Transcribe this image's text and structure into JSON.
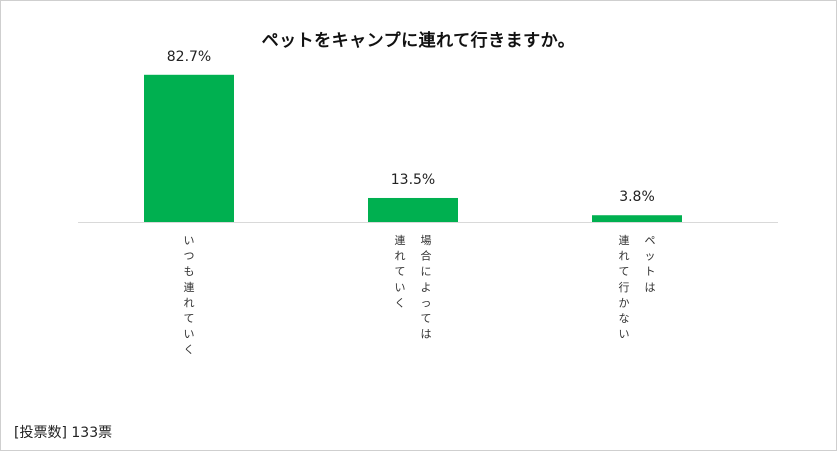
{
  "chart_data": {
    "type": "bar",
    "title": "ペットをキャンプに連れて行きますか。",
    "categories": [
      [
        "いつも連れていく"
      ],
      [
        "場合によっては",
        "連れていく"
      ],
      [
        "ペットは",
        "連れて行かない"
      ]
    ],
    "values": [
      82.7,
      13.5,
      3.8
    ],
    "value_labels": [
      "82.7%",
      "13.5%",
      "3.8%"
    ],
    "ylim": [
      0,
      100
    ],
    "grid": false,
    "bar_color": "#00b050"
  },
  "footer": {
    "vote_label": "[投票数]",
    "vote_count": "133票"
  }
}
